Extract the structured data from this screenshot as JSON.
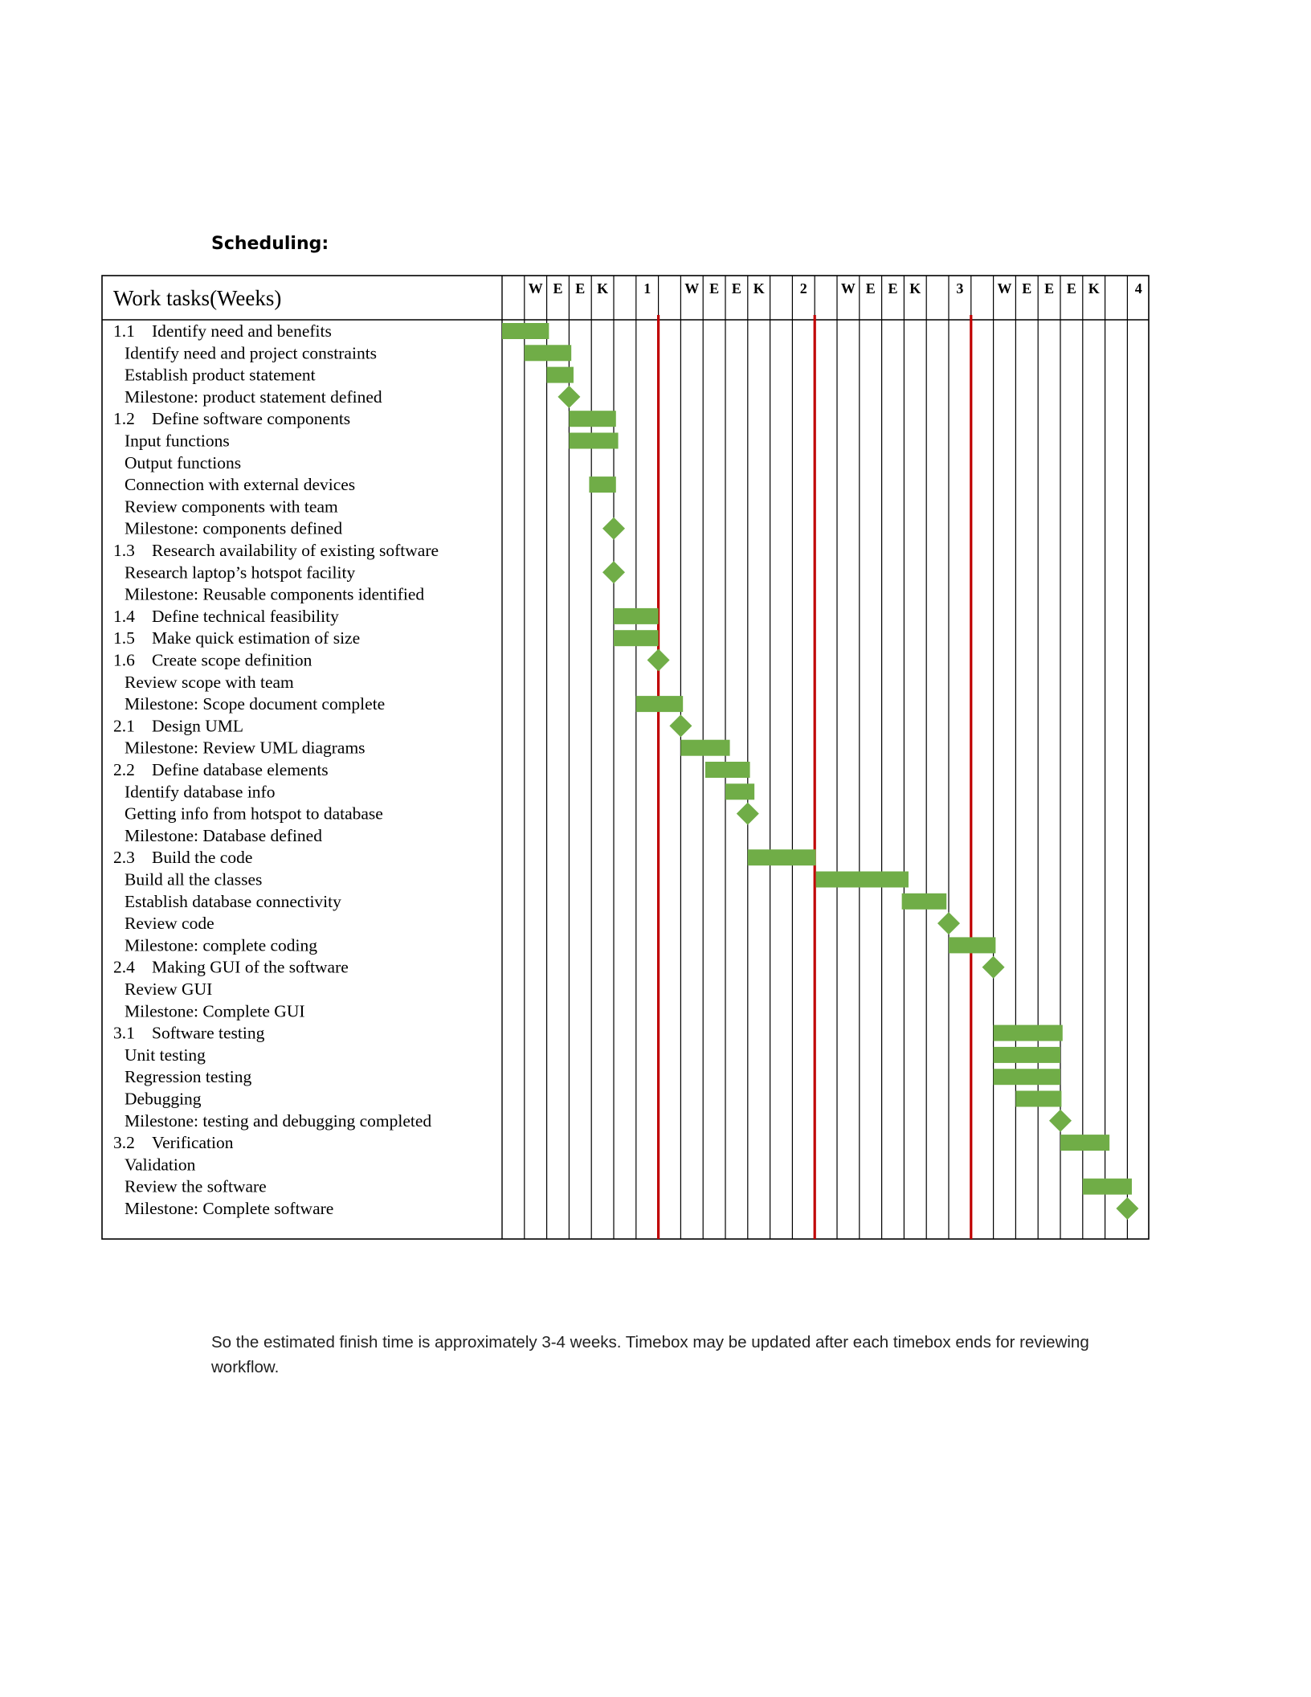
{
  "heading": "Scheduling:",
  "table": {
    "task_header": "Work tasks(Weeks)",
    "timeline_header": [
      "",
      "W",
      "E",
      "E",
      "K",
      "",
      "1",
      "",
      "W",
      "E",
      "E",
      "K",
      "",
      "2",
      "",
      "W",
      "E",
      "E",
      "K",
      "",
      "3",
      "",
      "W",
      "E",
      "E",
      "E",
      "K",
      "",
      "4"
    ],
    "tasks": [
      {
        "num": "1.1",
        "label": "Identify need and benefits",
        "kind": "bar",
        "start": 0,
        "end": 2.1
      },
      {
        "num": "",
        "label": "Identify need and project constraints",
        "kind": "bar",
        "start": 1,
        "end": 3.1
      },
      {
        "num": "",
        "label": "Establish product statement",
        "kind": "bar",
        "start": 2,
        "end": 3.2
      },
      {
        "num": "",
        "label": "Milestone: product statement defined",
        "kind": "milestone",
        "at": 3
      },
      {
        "num": "1.2",
        "label": "Define software components",
        "kind": "bar",
        "start": 3,
        "end": 5.1
      },
      {
        "num": "",
        "label": "Input functions",
        "kind": "bar",
        "start": 3,
        "end": 5.2
      },
      {
        "num": "",
        "label": "Output functions",
        "kind": "none"
      },
      {
        "num": "",
        "label": "Connection with external devices",
        "kind": "bar",
        "start": 3.9,
        "end": 5.1
      },
      {
        "num": "",
        "label": "Review components with team",
        "kind": "none"
      },
      {
        "num": "",
        "label": "Milestone: components defined",
        "kind": "milestone",
        "at": 5
      },
      {
        "num": "1.3",
        "label": "Research availability of existing software",
        "kind": "none"
      },
      {
        "num": "",
        "label": "Research laptop’s hotspot facility",
        "kind": "milestone",
        "at": 5
      },
      {
        "num": "",
        "label": "Milestone: Reusable components identified",
        "kind": "none"
      },
      {
        "num": "1.4",
        "label": "Define technical feasibility",
        "kind": "bar",
        "start": 5,
        "end": 7
      },
      {
        "num": "1.5",
        "label": "Make quick estimation of size",
        "kind": "bar",
        "start": 5,
        "end": 7
      },
      {
        "num": "1.6",
        "label": "Create scope definition",
        "kind": "milestone",
        "at": 7
      },
      {
        "num": "",
        "label": "Review scope with team",
        "kind": "none"
      },
      {
        "num": "",
        "label": "Milestone: Scope document complete",
        "kind": "bar",
        "start": 6,
        "end": 8.1
      },
      {
        "num": "2.1",
        "label": "Design UML",
        "kind": "milestone",
        "at": 8
      },
      {
        "num": "",
        "label": "Milestone: Review UML diagrams",
        "kind": "bar",
        "start": 8,
        "end": 10.2
      },
      {
        "num": "2.2",
        "label": "Define database elements",
        "kind": "bar",
        "start": 9.1,
        "end": 11.1
      },
      {
        "num": "",
        "label": "Identify database info",
        "kind": "bar",
        "start": 10,
        "end": 11.3
      },
      {
        "num": "",
        "label": "Getting info from hotspot to database",
        "kind": "milestone",
        "at": 11
      },
      {
        "num": "",
        "label": "Milestone: Database defined",
        "kind": "none"
      },
      {
        "num": "2.3",
        "label": "Build the code",
        "kind": "bar",
        "start": 11,
        "end": 14.05
      },
      {
        "num": "",
        "label": "Build all the classes",
        "kind": "bar",
        "start": 14.05,
        "end": 18.2
      },
      {
        "num": "",
        "label": "Establish database connectivity",
        "kind": "bar",
        "start": 17.9,
        "end": 19.9
      },
      {
        "num": "",
        "label": "Review code",
        "kind": "milestone",
        "at": 20
      },
      {
        "num": "",
        "label": "Milestone: complete coding",
        "kind": "bar",
        "start": 20,
        "end": 22.1
      },
      {
        "num": "2.4",
        "label": "Making GUI of the software",
        "kind": "milestone",
        "at": 22
      },
      {
        "num": "",
        "label": "Review GUI",
        "kind": "none"
      },
      {
        "num": "",
        "label": "Milestone: Complete GUI",
        "kind": "none"
      },
      {
        "num": "3.1",
        "label": "Software testing",
        "kind": "bar",
        "start": 22,
        "end": 25.1
      },
      {
        "num": "",
        "label": "Unit testing",
        "kind": "bar",
        "start": 22,
        "end": 25
      },
      {
        "num": "",
        "label": "Regression testing",
        "kind": "bar",
        "start": 22,
        "end": 25
      },
      {
        "num": "",
        "label": "Debugging",
        "kind": "bar",
        "start": 23,
        "end": 25.05
      },
      {
        "num": "",
        "label": "Milestone: testing and debugging completed",
        "kind": "milestone",
        "at": 25
      },
      {
        "num": "3.2",
        "label": "Verification",
        "kind": "bar",
        "start": 25,
        "end": 27.2
      },
      {
        "num": "",
        "label": "Validation",
        "kind": "none"
      },
      {
        "num": "",
        "label": "Review the software",
        "kind": "bar",
        "start": 26,
        "end": 28.2
      },
      {
        "num": "",
        "label": "Milestone: Complete software",
        "kind": "milestone",
        "at": 28
      }
    ],
    "week_marker_columns": [
      7,
      14,
      21
    ],
    "colors": {
      "bar": "#70ad47",
      "marker": "#c00000",
      "grid": "#000000"
    }
  },
  "footer_text": "So the estimated finish time is approximately 3-4 weeks. Timebox may be updated after each timebox ends for reviewing workflow."
}
